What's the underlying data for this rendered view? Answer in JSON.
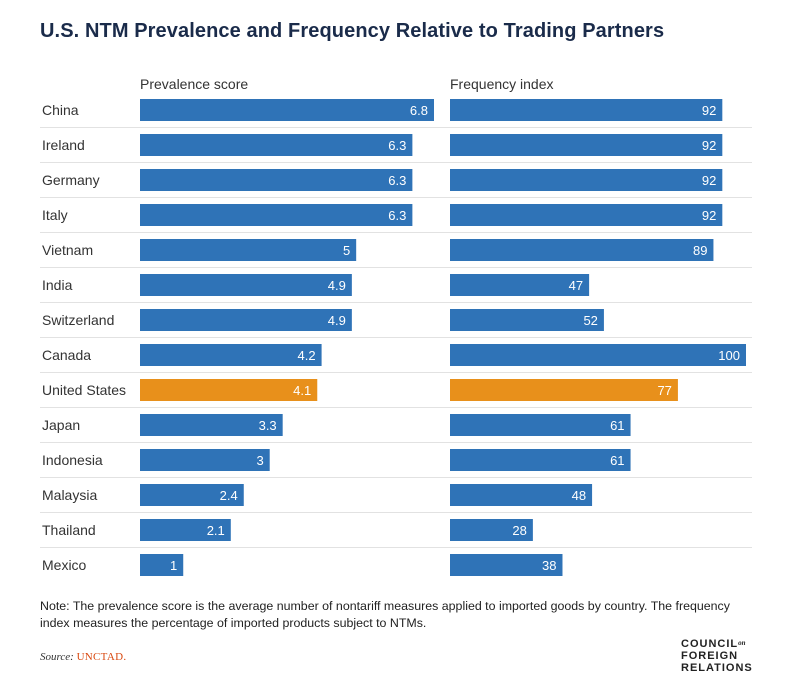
{
  "title": "U.S. NTM Prevalence and Frequency Relative to Trading Partners",
  "note": "Note: The prevalence score is the average number of nontariff measures applied to imported goods by country. The frequency index measures the percentage of imported products subject to NTMs.",
  "source": {
    "prefix": "Source:",
    "name": "UNCTAD."
  },
  "logo": {
    "line1": "COUNCIL",
    "line1_small": "on",
    "line2": "FOREIGN",
    "line3": "RELATIONS"
  },
  "colors": {
    "bar": "#2f73b7",
    "highlight": "#e8901b",
    "bar_text": "#ffffff",
    "title": "#1a2b4a"
  },
  "chart_data": {
    "type": "bar",
    "orientation": "horizontal",
    "title": "U.S. NTM Prevalence and Frequency Relative to Trading Partners",
    "categories": [
      "China",
      "Ireland",
      "Germany",
      "Italy",
      "Vietnam",
      "India",
      "Switzerland",
      "Canada",
      "United States",
      "Japan",
      "Indonesia",
      "Malaysia",
      "Thailand",
      "Mexico"
    ],
    "highlight": "United States",
    "series": [
      {
        "name": "Prevalence score",
        "values": [
          6.8,
          6.3,
          6.3,
          6.3,
          5,
          4.9,
          4.9,
          4.2,
          4.1,
          3.3,
          3,
          2.4,
          2.1,
          1
        ],
        "xlim": [
          0,
          6.8
        ]
      },
      {
        "name": "Frequency index",
        "values": [
          92,
          92,
          92,
          92,
          89,
          47,
          52,
          100,
          77,
          61,
          61,
          48,
          28,
          38
        ],
        "xlim": [
          0,
          100
        ]
      }
    ],
    "grid": false,
    "data_labels": true
  }
}
